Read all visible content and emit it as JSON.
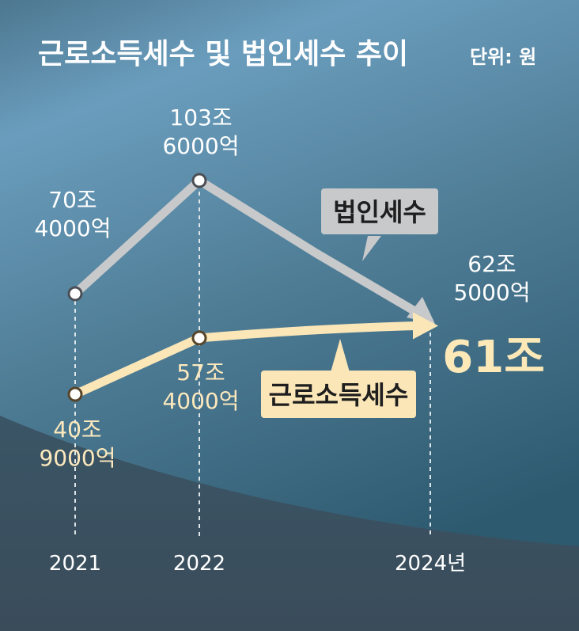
{
  "colors": {
    "background_top": "#6aa0c0",
    "background_bottom": "#2e4657",
    "corporate_line": "#c8c9cb",
    "labor_line": "#fbe6b8",
    "text_white": "#ffffff",
    "text_cream": "#fde9bd",
    "dashed": "#dfe6ea"
  },
  "chart_data": {
    "type": "line",
    "title": "근로소득세수 및 법인세수 추이",
    "unit": "단위: 원",
    "x": [
      "2021",
      "2022",
      "2024년"
    ],
    "series": [
      {
        "name": "법인세수",
        "values": [
          704000,
          1036000,
          625000
        ],
        "value_labels": [
          [
            "70조",
            "4000억"
          ],
          [
            "103조",
            "6000억"
          ],
          [
            "62조",
            "5000억"
          ]
        ]
      },
      {
        "name": "근로소득세수",
        "values": [
          409000,
          574000,
          610000
        ],
        "value_labels": [
          [
            "40조",
            "9000억"
          ],
          [
            "57조",
            "4000억"
          ],
          [
            "61조"
          ]
        ]
      }
    ]
  }
}
